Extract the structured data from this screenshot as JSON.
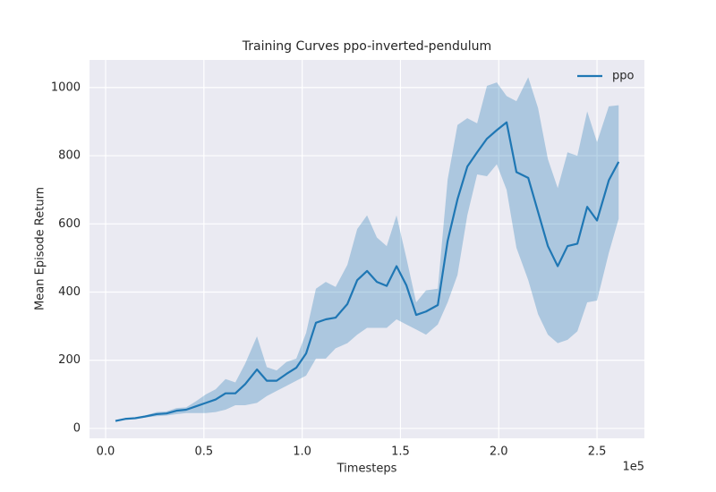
{
  "chart_data": {
    "type": "line",
    "title": "Training Curves ppo-inverted-pendulum",
    "x_label": "Timesteps",
    "y_label": "Mean Episode Return",
    "x_offset_label": "1e5",
    "x": [
      0.05,
      0.1,
      0.15,
      0.2,
      0.26,
      0.31,
      0.36,
      0.41,
      0.46,
      0.51,
      0.56,
      0.61,
      0.66,
      0.71,
      0.77,
      0.82,
      0.87,
      0.92,
      0.97,
      1.02,
      1.07,
      1.12,
      1.17,
      1.23,
      1.28,
      1.33,
      1.38,
      1.43,
      1.48,
      1.53,
      1.58,
      1.63,
      1.69,
      1.74,
      1.79,
      1.84,
      1.89,
      1.94,
      1.99,
      2.04,
      2.09,
      2.15,
      2.2,
      2.25,
      2.3,
      2.35,
      2.4,
      2.45,
      2.5,
      2.56,
      2.61
    ],
    "series": [
      {
        "name": "ppo",
        "color": "#1f77b4",
        "band_opacity": 0.3,
        "values": [
          22,
          28,
          30,
          35,
          42,
          44,
          52,
          55,
          65,
          75,
          85,
          103,
          103,
          130,
          173,
          140,
          140,
          160,
          178,
          220,
          310,
          320,
          325,
          365,
          435,
          462,
          430,
          418,
          476,
          420,
          333,
          343,
          362,
          550,
          672,
          768,
          810,
          850,
          875,
          898,
          752,
          735,
          635,
          535,
          476,
          535,
          542,
          650,
          610,
          728,
          782
        ],
        "upper": [
          22,
          30,
          32,
          38,
          48,
          50,
          60,
          62,
          80,
          100,
          115,
          145,
          135,
          190,
          270,
          180,
          170,
          195,
          205,
          280,
          410,
          430,
          415,
          480,
          585,
          625,
          560,
          535,
          625,
          500,
          370,
          405,
          410,
          730,
          890,
          910,
          895,
          1005,
          1015,
          975,
          960,
          1030,
          940,
          790,
          705,
          810,
          800,
          930,
          840,
          945,
          948
        ],
        "lower": [
          22,
          27,
          28,
          32,
          36,
          38,
          42,
          45,
          45,
          45,
          48,
          55,
          68,
          68,
          75,
          95,
          110,
          125,
          140,
          155,
          205,
          205,
          235,
          250,
          275,
          295,
          295,
          295,
          320,
          305,
          290,
          275,
          305,
          370,
          450,
          625,
          745,
          740,
          775,
          700,
          530,
          435,
          335,
          275,
          250,
          260,
          285,
          370,
          375,
          515,
          615
        ]
      }
    ],
    "xlim": [
      -0.082,
      2.741
    ],
    "ylim": [
      -29,
      1081
    ],
    "xticks": [
      {
        "value": 0,
        "label": "0.0"
      },
      {
        "value": 0.5,
        "label": "0.5"
      },
      {
        "value": 1,
        "label": "1.0"
      },
      {
        "value": 1.5,
        "label": "1.5"
      },
      {
        "value": 2,
        "label": "2.0"
      },
      {
        "value": 2.5,
        "label": "2.5"
      }
    ],
    "yticks": [
      0,
      200,
      400,
      600,
      800,
      1000
    ],
    "grid": true,
    "legend": "upper-right"
  }
}
